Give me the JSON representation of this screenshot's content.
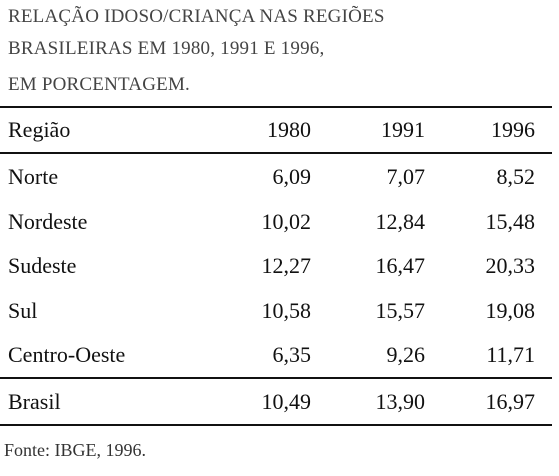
{
  "header": {
    "title_lines": [
      "RELAÇÃO IDOSO/CRIANÇA NAS REGIÕES",
      "BRASILEIRAS EM 1980, 1991 E 1996,",
      "EM PORCENTAGEM."
    ]
  },
  "table": {
    "columns": [
      "Região",
      "1980",
      "1991",
      "1996"
    ],
    "rows": [
      [
        "Norte",
        "6,09",
        "7,07",
        "8,52"
      ],
      [
        "Nordeste",
        "10,02",
        "12,84",
        "15,48"
      ],
      [
        "Sudeste",
        "12,27",
        "16,47",
        "20,33"
      ],
      [
        "Sul",
        "10,58",
        "15,57",
        "19,08"
      ],
      [
        "Centro-Oeste",
        "6,35",
        "9,26",
        "11,71"
      ]
    ],
    "total": [
      "Brasil",
      "10,49",
      "13,90",
      "16,97"
    ]
  },
  "footer": {
    "source": "Fonte: IBGE, 1996."
  }
}
